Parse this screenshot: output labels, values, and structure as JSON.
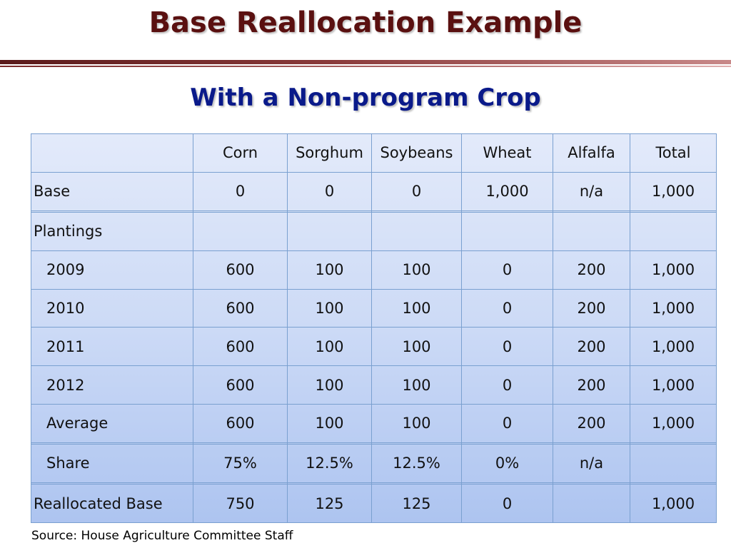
{
  "slide": {
    "title": "Base Reallocation Example",
    "subtitle": "With a Non-program Crop",
    "source": "Source:  House Agriculture Committee Staff"
  },
  "colors": {
    "title": "#5a1010",
    "subtitle": "#0a1a8a",
    "rule": "#7a2a2a",
    "table_border": "#7aa0d0",
    "table_fill_top": "#e3eafa",
    "table_fill_bottom": "#adc4f0"
  },
  "table": {
    "columns": [
      "",
      "Corn",
      "Sorghum",
      "Soybeans",
      "Wheat",
      "Alfalfa",
      "Total"
    ],
    "rows": [
      {
        "label": "Base",
        "cells": [
          "0",
          "0",
          "0",
          "1,000",
          "n/a",
          "1,000"
        ]
      },
      {
        "label": "",
        "cells": [
          "",
          "",
          "",
          "",
          "",
          ""
        ]
      },
      {
        "label": "Plantings",
        "cells": [
          "",
          "",
          "",
          "",
          "",
          ""
        ]
      },
      {
        "label": "2009",
        "cells": [
          "600",
          "100",
          "100",
          "0",
          "200",
          "1,000"
        ]
      },
      {
        "label": "2010",
        "cells": [
          "600",
          "100",
          "100",
          "0",
          "200",
          "1,000"
        ]
      },
      {
        "label": "2011",
        "cells": [
          "600",
          "100",
          "100",
          "0",
          "200",
          "1,000"
        ]
      },
      {
        "label": "2012",
        "cells": [
          "600",
          "100",
          "100",
          "0",
          "200",
          "1,000"
        ]
      },
      {
        "label": "Average",
        "cells": [
          "600",
          "100",
          "100",
          "0",
          "200",
          "1,000"
        ]
      },
      {
        "label": "",
        "cells": [
          "",
          "",
          "",
          "",
          "",
          ""
        ]
      },
      {
        "label": "Share",
        "cells": [
          "75%",
          "12.5%",
          "12.5%",
          "0%",
          "n/a",
          ""
        ]
      },
      {
        "label": "",
        "cells": [
          "",
          "",
          "",
          "",
          "",
          ""
        ]
      },
      {
        "label": "Reallocated Base",
        "cells": [
          "750",
          "125",
          "125",
          "0",
          "",
          "1,000"
        ]
      }
    ]
  }
}
